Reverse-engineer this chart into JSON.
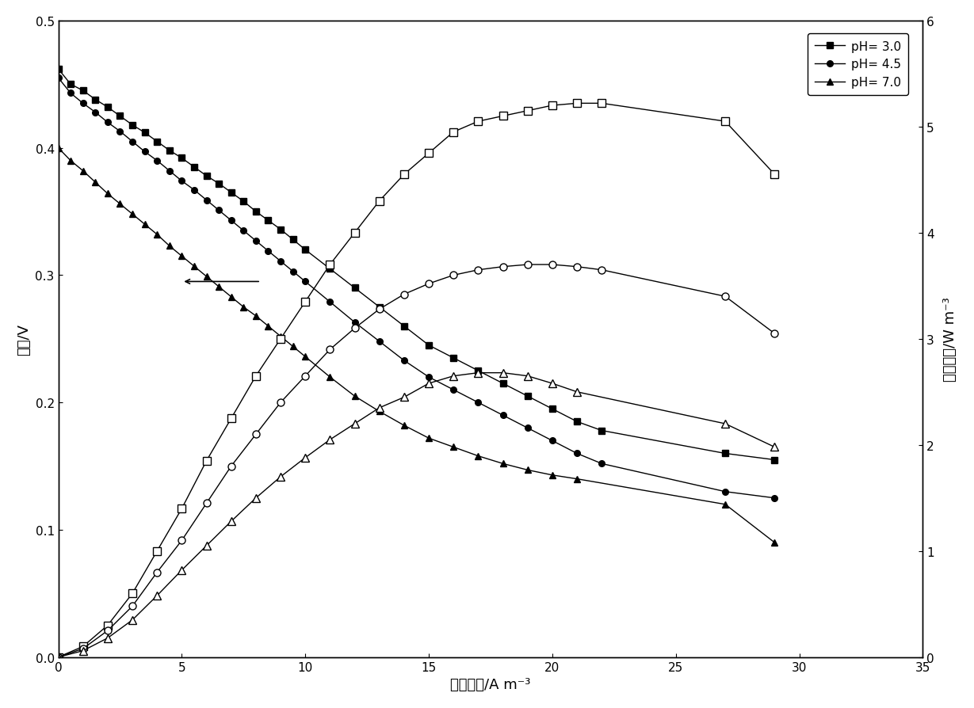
{
  "xlabel": "电流密度/A m⁻³",
  "ylabel_left": "电压/V",
  "ylabel_right": "功率密度/W m⁻³",
  "xlim": [
    0,
    35
  ],
  "ylim_left": [
    0,
    0.5
  ],
  "ylim_right": [
    0,
    6
  ],
  "legend_labels": [
    "pH= 3.0",
    "pH= 4.5",
    "pH= 7.0"
  ],
  "voltage_ph30_x": [
    0,
    0.5,
    1.0,
    1.5,
    2.0,
    2.5,
    3.0,
    3.5,
    4.0,
    4.5,
    5.0,
    5.5,
    6.0,
    6.5,
    7.0,
    7.5,
    8.0,
    8.5,
    9.0,
    9.5,
    10.0,
    11.0,
    12.0,
    13.0,
    14.0,
    15.0,
    16.0,
    17.0,
    18.0,
    19.0,
    20.0,
    21.0,
    22.0,
    27.0,
    29.0
  ],
  "voltage_ph30_y": [
    0.462,
    0.45,
    0.445,
    0.438,
    0.432,
    0.425,
    0.418,
    0.412,
    0.405,
    0.398,
    0.392,
    0.385,
    0.378,
    0.372,
    0.365,
    0.358,
    0.35,
    0.343,
    0.336,
    0.328,
    0.32,
    0.305,
    0.29,
    0.275,
    0.26,
    0.245,
    0.235,
    0.225,
    0.215,
    0.205,
    0.195,
    0.185,
    0.178,
    0.16,
    0.155
  ],
  "voltage_ph45_x": [
    0,
    0.5,
    1.0,
    1.5,
    2.0,
    2.5,
    3.0,
    3.5,
    4.0,
    4.5,
    5.0,
    5.5,
    6.0,
    6.5,
    7.0,
    7.5,
    8.0,
    8.5,
    9.0,
    9.5,
    10.0,
    11.0,
    12.0,
    13.0,
    14.0,
    15.0,
    16.0,
    17.0,
    18.0,
    19.0,
    20.0,
    21.0,
    22.0,
    27.0,
    29.0
  ],
  "voltage_ph45_y": [
    0.455,
    0.443,
    0.435,
    0.428,
    0.42,
    0.413,
    0.405,
    0.397,
    0.39,
    0.382,
    0.374,
    0.367,
    0.359,
    0.351,
    0.343,
    0.335,
    0.327,
    0.319,
    0.311,
    0.303,
    0.295,
    0.279,
    0.263,
    0.248,
    0.233,
    0.22,
    0.21,
    0.2,
    0.19,
    0.18,
    0.17,
    0.16,
    0.152,
    0.13,
    0.125
  ],
  "voltage_ph70_x": [
    0,
    0.5,
    1.0,
    1.5,
    2.0,
    2.5,
    3.0,
    3.5,
    4.0,
    4.5,
    5.0,
    5.5,
    6.0,
    6.5,
    7.0,
    7.5,
    8.0,
    8.5,
    9.0,
    9.5,
    10.0,
    11.0,
    12.0,
    13.0,
    14.0,
    15.0,
    16.0,
    17.0,
    18.0,
    19.0,
    20.0,
    21.0,
    27.0,
    29.0
  ],
  "voltage_ph70_y": [
    0.4,
    0.39,
    0.382,
    0.373,
    0.364,
    0.356,
    0.348,
    0.34,
    0.332,
    0.323,
    0.315,
    0.307,
    0.299,
    0.291,
    0.283,
    0.275,
    0.268,
    0.26,
    0.252,
    0.244,
    0.236,
    0.22,
    0.205,
    0.193,
    0.182,
    0.172,
    0.165,
    0.158,
    0.152,
    0.147,
    0.143,
    0.14,
    0.12,
    0.09
  ],
  "power_ph30_x": [
    0,
    1.0,
    2.0,
    3.0,
    4.0,
    5.0,
    6.0,
    7.0,
    8.0,
    9.0,
    10.0,
    11.0,
    12.0,
    13.0,
    14.0,
    15.0,
    16.0,
    17.0,
    18.0,
    19.0,
    20.0,
    21.0,
    22.0,
    27.0,
    29.0
  ],
  "power_ph30_y": [
    0,
    0.1,
    0.3,
    0.6,
    1.0,
    1.4,
    1.85,
    2.25,
    2.65,
    3.0,
    3.35,
    3.7,
    4.0,
    4.3,
    4.55,
    4.75,
    4.95,
    5.05,
    5.1,
    5.15,
    5.2,
    5.22,
    5.22,
    5.05,
    4.55
  ],
  "power_ph45_x": [
    0,
    1.0,
    2.0,
    3.0,
    4.0,
    5.0,
    6.0,
    7.0,
    8.0,
    9.0,
    10.0,
    11.0,
    12.0,
    13.0,
    14.0,
    15.0,
    16.0,
    17.0,
    18.0,
    19.0,
    20.0,
    21.0,
    22.0,
    27.0,
    29.0
  ],
  "power_ph45_y": [
    0,
    0.08,
    0.25,
    0.48,
    0.8,
    1.1,
    1.45,
    1.8,
    2.1,
    2.4,
    2.65,
    2.9,
    3.1,
    3.28,
    3.42,
    3.52,
    3.6,
    3.65,
    3.68,
    3.7,
    3.7,
    3.68,
    3.65,
    3.4,
    3.05
  ],
  "power_ph70_x": [
    0,
    1.0,
    2.0,
    3.0,
    4.0,
    5.0,
    6.0,
    7.0,
    8.0,
    9.0,
    10.0,
    11.0,
    12.0,
    13.0,
    14.0,
    15.0,
    16.0,
    17.0,
    18.0,
    19.0,
    20.0,
    21.0,
    27.0,
    29.0
  ],
  "power_ph70_y": [
    0,
    0.06,
    0.18,
    0.35,
    0.58,
    0.82,
    1.05,
    1.28,
    1.5,
    1.7,
    1.88,
    2.05,
    2.2,
    2.35,
    2.45,
    2.58,
    2.65,
    2.68,
    2.68,
    2.65,
    2.58,
    2.5,
    2.2,
    1.98
  ],
  "color": "#000000",
  "background": "#ffffff"
}
